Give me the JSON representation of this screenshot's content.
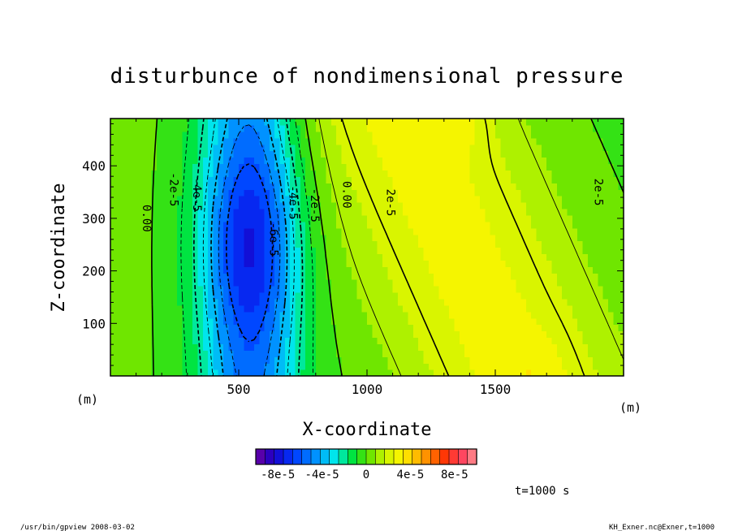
{
  "chart_data": {
    "type": "heatmap",
    "title": "disturbunce of nondimensional pressure",
    "xlabel": "X-coordinate",
    "ylabel": "Z-coordinate",
    "x_unit": "(m)",
    "y_unit": "(m)",
    "xlim": [
      0,
      2000
    ],
    "ylim": [
      0,
      490
    ],
    "x_ticks": [
      500,
      1000,
      1500
    ],
    "x_tick_labels": [
      "500",
      "1000",
      "1500"
    ],
    "y_ticks": [
      100,
      200,
      300,
      400
    ],
    "y_tick_labels": [
      "100",
      "200",
      "300",
      "400"
    ],
    "contour_labels": [
      {
        "text": "0.00",
        "x": 140,
        "z": 300
      },
      {
        "text": "-2e-5",
        "x": 245,
        "z": 355
      },
      {
        "text": "-4e-5",
        "x": 335,
        "z": 345
      },
      {
        "text": "-6e-5",
        "x": 635,
        "z": 260
      },
      {
        "text": "-4e-5",
        "x": 710,
        "z": 330
      },
      {
        "text": "-2e-5",
        "x": 795,
        "z": 325
      },
      {
        "text": "0.00",
        "x": 920,
        "z": 345
      },
      {
        "text": "2e-5",
        "x": 1090,
        "z": 330
      },
      {
        "text": "2e-5",
        "x": 1900,
        "z": 350
      }
    ],
    "colorbar": {
      "min": -0.0001,
      "max": 0.0001,
      "levels": 24,
      "tick_labels": [
        "-8e-5",
        "-4e-5",
        "0",
        "4e-5",
        "8e-5"
      ],
      "tick_values": [
        -8e-05,
        -4e-05,
        0,
        4e-05,
        8e-05
      ]
    },
    "annotation": "t=1000 s"
  },
  "footer": {
    "left": "/usr/bin/gpview   2008-03-02",
    "right": "KH_Exner.nc@Exner,t=1000"
  }
}
